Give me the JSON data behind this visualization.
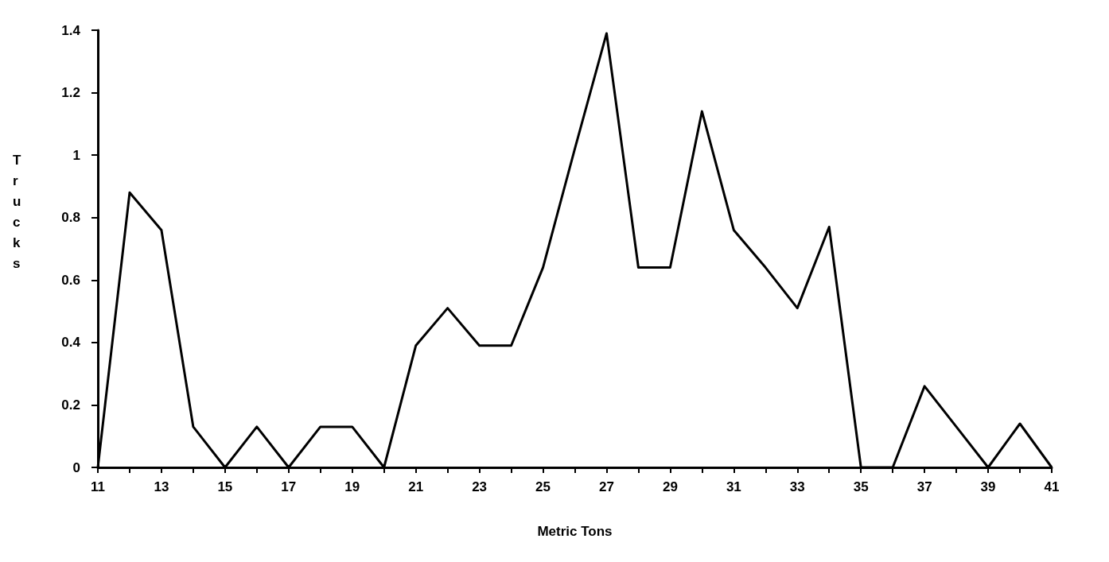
{
  "chart_data": {
    "type": "line",
    "xlabel": "Metric Tons",
    "ylabel": "Trucks",
    "x": [
      11,
      12,
      13,
      14,
      15,
      16,
      17,
      18,
      19,
      20,
      21,
      22,
      23,
      24,
      25,
      26,
      27,
      28,
      29,
      30,
      31,
      32,
      33,
      34,
      35,
      36,
      37,
      38,
      39,
      40,
      41
    ],
    "series": [
      {
        "color": "#000000",
        "values": [
          0,
          0.88,
          0.76,
          0.13,
          0,
          0.13,
          0,
          0.13,
          0.13,
          0,
          0.39,
          0.51,
          0.39,
          0.39,
          0.64,
          1.02,
          1.39,
          0.64,
          0.64,
          1.14,
          0.76,
          0.64,
          0.51,
          0.77,
          0,
          0,
          0.26,
          0.13,
          0,
          0.14,
          0
        ]
      }
    ],
    "xlim": [
      11,
      41
    ],
    "xticks": [
      11,
      {
        "value": 12,
        "label": null
      },
      13,
      {
        "value": 14,
        "label": null
      },
      15,
      {
        "value": 16,
        "label": null
      },
      17,
      {
        "value": 18,
        "label": null
      },
      19,
      {
        "value": 20,
        "label": null
      },
      21,
      {
        "value": 22,
        "label": null
      },
      23,
      {
        "value": 24,
        "label": null
      },
      25,
      {
        "value": 26,
        "label": null
      },
      27,
      {
        "value": 28,
        "label": null
      },
      29,
      {
        "value": 30,
        "label": null
      },
      31,
      {
        "value": 32,
        "label": null
      },
      33,
      {
        "value": 34,
        "label": null
      },
      35,
      {
        "value": 36,
        "label": null
      },
      37,
      {
        "value": 38,
        "label": null
      },
      39,
      {
        "value": 40,
        "label": null
      },
      41
    ],
    "ylim": [
      0,
      1.4
    ],
    "yticks": [
      0,
      0.2,
      0.4,
      0.6,
      0.8,
      1,
      1.2,
      1.4
    ],
    "grid": false,
    "marker": "none",
    "line_style": "solid"
  }
}
